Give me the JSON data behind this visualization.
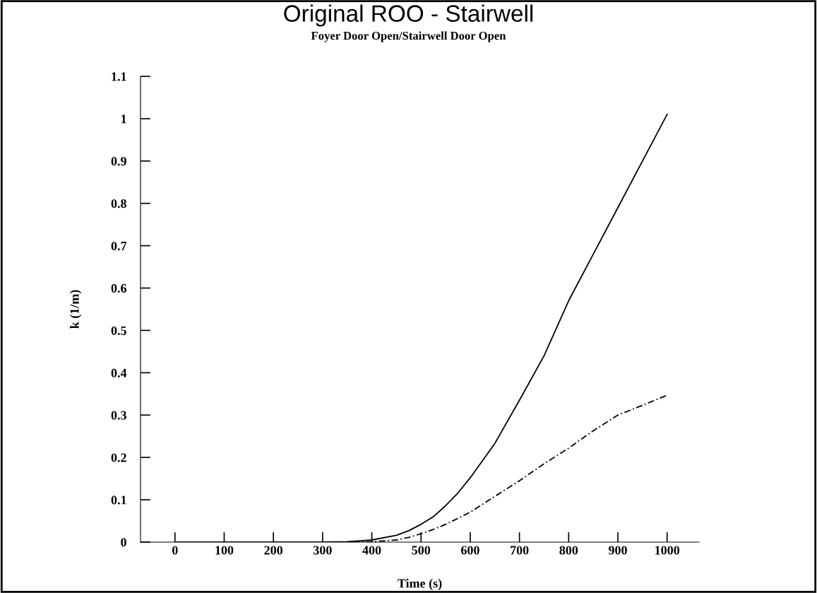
{
  "chart_data": {
    "type": "line",
    "title": "Original ROO - Stairwell",
    "subtitle": "Foyer Door Open/Stairwell Door Open",
    "xlabel": "Time (s)",
    "ylabel": "k (1/m)",
    "x": [
      0,
      100,
      200,
      300,
      350,
      400,
      450,
      475,
      500,
      525,
      550,
      575,
      600,
      650,
      700,
      750,
      800,
      850,
      900,
      950,
      1000
    ],
    "series": [
      {
        "color": "#000000",
        "line_style": "solid",
        "values": [
          0,
          0,
          0,
          0,
          0.001,
          0.005,
          0.016,
          0.027,
          0.042,
          0.06,
          0.086,
          0.116,
          0.152,
          0.233,
          0.335,
          0.44,
          0.57,
          0.68,
          0.79,
          0.9,
          1.01
        ]
      },
      {
        "color": "#000000",
        "line_style": "dashed",
        "values": [
          0,
          0,
          0,
          0,
          0,
          0.001,
          0.005,
          0.011,
          0.02,
          0.03,
          0.042,
          0.056,
          0.071,
          0.108,
          0.145,
          0.185,
          0.222,
          0.263,
          0.3,
          0.323,
          0.347
        ]
      }
    ],
    "xlim": [
      -70,
      1065
    ],
    "ylim": [
      0,
      1.1
    ],
    "xticks": [
      0,
      100,
      200,
      300,
      400,
      500,
      600,
      700,
      800,
      900,
      1000
    ],
    "yticks": [
      0,
      0.1,
      0.2,
      0.3,
      0.4,
      0.5,
      0.6,
      0.7,
      0.8,
      0.9,
      1,
      1.1
    ],
    "grid": false,
    "legend": false
  }
}
